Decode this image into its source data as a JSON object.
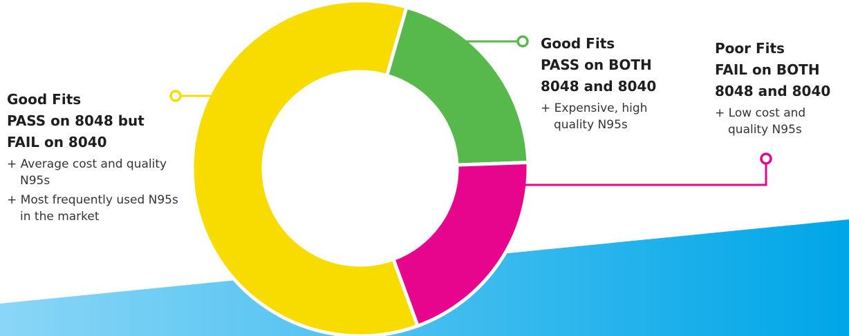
{
  "chart_data": {
    "type": "donut",
    "colors": {
      "yellow": "#f8dc00",
      "green": "#57b94b",
      "pink": "#e6058c",
      "background_band_light": "#7fd1f5",
      "background_band_dark": "#00a3e6"
    },
    "slices": [
      {
        "key": "pass_both",
        "color": "#57b94b",
        "percent": 20,
        "title_lines": [
          "Good Fits",
          "PASS on BOTH",
          "8048 and 8040"
        ],
        "notes": [
          "Expensive, high quality N95s"
        ]
      },
      {
        "key": "fail_both",
        "color": "#e6058c",
        "percent": 20,
        "title_lines": [
          "Poor Fits",
          "FAIL on BOTH",
          "8048 and 8040"
        ],
        "notes": [
          "Low cost and quality N95s"
        ]
      },
      {
        "key": "pass_8048_fail_8040",
        "color": "#f8dc00",
        "percent": 60,
        "title_lines": [
          "Good Fits",
          "PASS on 8048 but",
          "FAIL on 8040"
        ],
        "notes": [
          "Average cost and quality N95s",
          "Most frequently used N95s in the market"
        ]
      }
    ]
  }
}
